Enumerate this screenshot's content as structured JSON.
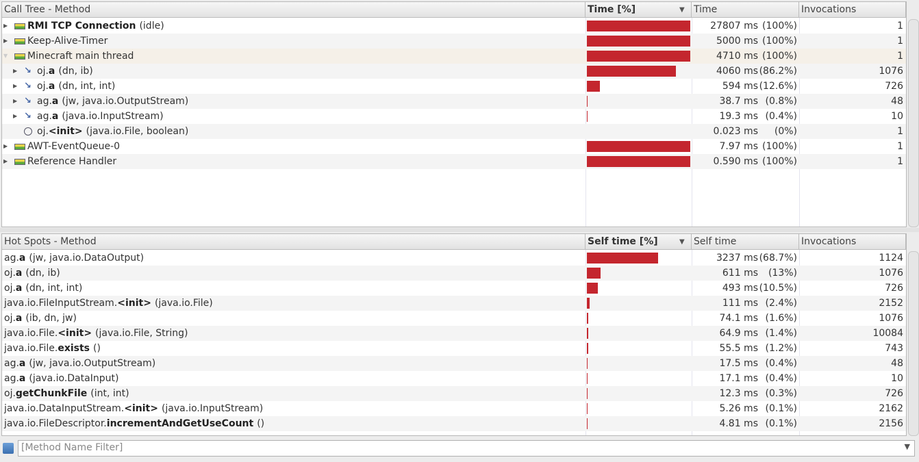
{
  "call_tree": {
    "columns": [
      "Call Tree - Method",
      "Time [%]",
      "Time",
      "Invocations"
    ],
    "rows": [
      {
        "kind": "thread",
        "level": 0,
        "name": "RMI TCP Connection",
        "args": "(idle)",
        "bold": true,
        "time": "27807 ms",
        "pct": 100,
        "pct_label": "(100%)",
        "invocations": 1
      },
      {
        "kind": "thread",
        "level": 0,
        "name": "Keep-Alive-Timer",
        "time": "5000 ms",
        "pct": 100,
        "pct_label": "(100%)",
        "invocations": 1
      },
      {
        "kind": "thread",
        "level": 0,
        "name": "Minecraft main thread",
        "expanded": true,
        "time": "4710 ms",
        "pct": 100,
        "pct_label": "(100%)",
        "invocations": 1
      },
      {
        "kind": "method",
        "level": 1,
        "prefix": "oj.",
        "name": "a",
        "args": "(dn, ib)",
        "bold": true,
        "time": "4060 ms",
        "pct": 86.2,
        "pct_label": "(86.2%)",
        "invocations": 1076
      },
      {
        "kind": "method",
        "level": 1,
        "prefix": "oj.",
        "name": "a",
        "args": "(dn, int, int)",
        "bold": true,
        "time": "594 ms",
        "pct": 12.6,
        "pct_label": "(12.6%)",
        "invocations": 726
      },
      {
        "kind": "method",
        "level": 1,
        "prefix": "ag.",
        "name": "a",
        "args": "(jw, java.io.OutputStream)",
        "bold": true,
        "time": "38.7 ms",
        "pct": 0.8,
        "pct_label": "(0.8%)",
        "invocations": 48
      },
      {
        "kind": "method",
        "level": 1,
        "prefix": "ag.",
        "name": "a",
        "args": "(java.io.InputStream)",
        "bold": true,
        "time": "19.3 ms",
        "pct": 0.4,
        "pct_label": "(0.4%)",
        "invocations": 10
      },
      {
        "kind": "leaf",
        "level": 1,
        "prefix": "oj.",
        "name": "<init>",
        "args": "(java.io.File, boolean)",
        "bold": true,
        "time": "0.023 ms",
        "pct": 0,
        "pct_label": "(0%)",
        "invocations": 1
      },
      {
        "kind": "thread",
        "level": 0,
        "name": "AWT-EventQueue-0",
        "time": "7.97 ms",
        "pct": 100,
        "pct_label": "(100%)",
        "invocations": 1
      },
      {
        "kind": "thread",
        "level": 0,
        "name": "Reference Handler",
        "time": "0.590 ms",
        "pct": 100,
        "pct_label": "(100%)",
        "invocations": 1
      }
    ]
  },
  "hot_spots": {
    "columns": [
      "Hot Spots - Method",
      "Self time [%]",
      "Self time",
      "Invocations"
    ],
    "rows": [
      {
        "prefix": "ag.",
        "name": "a",
        "args": "(jw, java.io.DataOutput)",
        "time": "3237 ms",
        "pct": 68.7,
        "pct_label": "(68.7%)",
        "invocations": 1124
      },
      {
        "prefix": "oj.",
        "name": "a",
        "args": "(dn, ib)",
        "time": "611 ms",
        "pct": 13,
        "pct_label": "(13%)",
        "invocations": 1076
      },
      {
        "prefix": "oj.",
        "name": "a",
        "args": "(dn, int, int)",
        "time": "493 ms",
        "pct": 10.5,
        "pct_label": "(10.5%)",
        "invocations": 726
      },
      {
        "prefix": "java.io.FileInputStream.",
        "name": "<init>",
        "args": "(java.io.File)",
        "time": "111 ms",
        "pct": 2.4,
        "pct_label": "(2.4%)",
        "invocations": 2152
      },
      {
        "prefix": "oj.",
        "name": "a",
        "args": "(ib, dn, jw)",
        "time": "74.1 ms",
        "pct": 1.6,
        "pct_label": "(1.6%)",
        "invocations": 1076
      },
      {
        "prefix": "java.io.File.",
        "name": "<init>",
        "args": "(java.io.File, String)",
        "time": "64.9 ms",
        "pct": 1.4,
        "pct_label": "(1.4%)",
        "invocations": 10084
      },
      {
        "prefix": "java.io.File.",
        "name": "exists",
        "args": "()",
        "time": "55.5 ms",
        "pct": 1.2,
        "pct_label": "(1.2%)",
        "invocations": 743
      },
      {
        "prefix": "ag.",
        "name": "a",
        "args": "(jw, java.io.OutputStream)",
        "time": "17.5 ms",
        "pct": 0.4,
        "pct_label": "(0.4%)",
        "invocations": 48
      },
      {
        "prefix": "ag.",
        "name": "a",
        "args": "(java.io.DataInput)",
        "time": "17.1 ms",
        "pct": 0.4,
        "pct_label": "(0.4%)",
        "invocations": 10
      },
      {
        "prefix": "oj.",
        "name": "getChunkFile",
        "args": "(int, int)",
        "time": "12.3 ms",
        "pct": 0.3,
        "pct_label": "(0.3%)",
        "invocations": 726
      },
      {
        "prefix": "java.io.DataInputStream.",
        "name": "<init>",
        "args": "(java.io.InputStream)",
        "time": "5.26 ms",
        "pct": 0.1,
        "pct_label": "(0.1%)",
        "invocations": 2162
      },
      {
        "prefix": "java.io.FileDescriptor.",
        "name": "incrementAndGetUseCount",
        "args": "()",
        "time": "4.81 ms",
        "pct": 0.1,
        "pct_label": "(0.1%)",
        "invocations": 2156
      }
    ]
  },
  "filter": {
    "placeholder": "[Method Name Filter]"
  }
}
